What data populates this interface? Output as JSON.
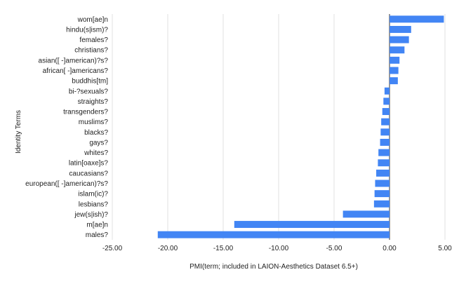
{
  "chart_data": {
    "type": "bar",
    "orientation": "horizontal",
    "xlabel": "PMI(term; included in LAION-Aesthetics Dataset 6.5+)",
    "ylabel": "Identity  Terms",
    "xlim": [
      -25,
      5
    ],
    "xticks": [
      -25,
      -20,
      -15,
      -10,
      -5,
      0,
      5
    ],
    "xtick_labels": [
      "-25.00",
      "-20.00",
      "-15.00",
      "-10.00",
      "-5.00",
      "0.00",
      "5.00"
    ],
    "grid": true,
    "bar_color": "#4285f4",
    "categories": [
      "wom[ae]n",
      "hindu(s|ism)?",
      "females?",
      "christians?",
      "asian([ -]american)?s?",
      "african[ -]americans?",
      "buddhis[tm]",
      "bi-?sexuals?",
      "straights?",
      "transgenders?",
      "muslims?",
      "blacks?",
      "gays?",
      "whites?",
      "latin[oaxe]s?",
      "caucasians?",
      "european([ -]american)?s?",
      "islam(ic)?",
      "lesbians?",
      "jew(s|ish)?",
      "m[ae]n",
      "males?"
    ],
    "values": [
      4.9,
      1.95,
      1.75,
      1.35,
      0.9,
      0.8,
      0.75,
      -0.45,
      -0.55,
      -0.65,
      -0.75,
      -0.8,
      -0.85,
      -1.0,
      -1.05,
      -1.2,
      -1.3,
      -1.35,
      -1.4,
      -4.2,
      -14.0,
      -20.9
    ]
  }
}
